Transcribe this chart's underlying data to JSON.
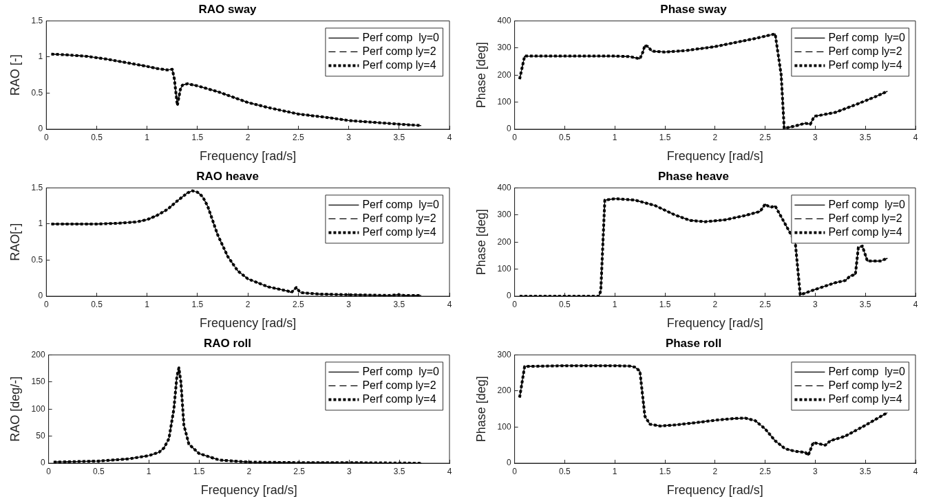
{
  "chart_data": [
    {
      "type": "line",
      "title": "RAO sway",
      "xlabel": "Frequency [rad/s]",
      "ylabel": "RAO [-]",
      "xlim": [
        0,
        4
      ],
      "xticks": [
        0,
        0.5,
        1,
        1.5,
        2,
        2.5,
        3,
        3.5,
        4
      ],
      "ylim": [
        0,
        1.5
      ],
      "yticks": [
        0,
        0.5,
        1,
        1.5
      ],
      "legend": "top right",
      "grid": false,
      "marker": "none",
      "x": [
        0.05,
        0.2,
        0.4,
        0.6,
        0.8,
        1.0,
        1.1,
        1.2,
        1.25,
        1.27,
        1.3,
        1.33,
        1.35,
        1.4,
        1.5,
        1.7,
        1.9,
        2.0,
        2.2,
        2.5,
        2.8,
        3.0,
        3.3,
        3.5,
        3.72
      ],
      "series": [
        {
          "name": "Perf comp  ly=0",
          "color": "#000000",
          "line_style": "solid",
          "values": [
            1.04,
            1.03,
            1.01,
            0.97,
            0.92,
            0.87,
            0.84,
            0.82,
            0.83,
            0.7,
            0.33,
            0.55,
            0.61,
            0.63,
            0.6,
            0.52,
            0.42,
            0.37,
            0.3,
            0.21,
            0.16,
            0.12,
            0.09,
            0.07,
            0.05
          ]
        },
        {
          "name": "Perf comp ly=2",
          "color": "#000000",
          "line_style": "dashed",
          "values": [
            1.04,
            1.03,
            1.01,
            0.97,
            0.92,
            0.87,
            0.84,
            0.82,
            0.83,
            0.7,
            0.33,
            0.55,
            0.61,
            0.63,
            0.6,
            0.52,
            0.42,
            0.37,
            0.3,
            0.21,
            0.16,
            0.12,
            0.09,
            0.07,
            0.05
          ]
        },
        {
          "name": "Perf comp ly=4",
          "color": "#000000",
          "line_style": "dotted",
          "values": [
            1.04,
            1.03,
            1.01,
            0.97,
            0.92,
            0.87,
            0.84,
            0.82,
            0.83,
            0.7,
            0.33,
            0.55,
            0.61,
            0.63,
            0.6,
            0.52,
            0.42,
            0.37,
            0.3,
            0.21,
            0.16,
            0.12,
            0.09,
            0.07,
            0.05
          ]
        }
      ]
    },
    {
      "type": "line",
      "title": "Phase sway",
      "xlabel": "Frequency [rad/s]",
      "ylabel": "Phase [deg]",
      "xlim": [
        0,
        4
      ],
      "xticks": [
        0,
        0.5,
        1,
        1.5,
        2,
        2.5,
        3,
        3.5,
        4
      ],
      "ylim": [
        0,
        400
      ],
      "yticks": [
        0,
        100,
        200,
        300,
        400
      ],
      "legend": "top right",
      "grid": false,
      "marker": "none",
      "x": [
        0.05,
        0.1,
        0.5,
        1.0,
        1.15,
        1.25,
        1.28,
        1.3,
        1.33,
        1.37,
        1.5,
        1.7,
        2.0,
        2.2,
        2.4,
        2.6,
        2.66,
        2.69,
        2.8,
        2.9,
        2.95,
        2.98,
        3.0,
        3.2,
        3.4,
        3.6,
        3.72
      ],
      "series": [
        {
          "name": "Perf comp  ly=0",
          "color": "#000000",
          "line_style": "solid",
          "values": [
            185,
            270,
            270,
            270,
            268,
            260,
            285,
            310,
            305,
            288,
            285,
            290,
            305,
            320,
            335,
            352,
            200,
            3,
            12,
            22,
            18,
            40,
            48,
            62,
            90,
            120,
            140
          ]
        },
        {
          "name": "Perf comp ly=2",
          "color": "#000000",
          "line_style": "dashed",
          "values": [
            185,
            270,
            270,
            270,
            268,
            260,
            285,
            310,
            305,
            288,
            285,
            290,
            305,
            320,
            335,
            352,
            200,
            3,
            12,
            22,
            18,
            40,
            48,
            62,
            90,
            120,
            140
          ]
        },
        {
          "name": "Perf comp ly=4",
          "color": "#000000",
          "line_style": "dotted",
          "values": [
            185,
            270,
            270,
            270,
            268,
            260,
            285,
            310,
            305,
            288,
            285,
            290,
            305,
            320,
            335,
            352,
            200,
            3,
            12,
            22,
            18,
            40,
            48,
            62,
            90,
            120,
            140
          ]
        }
      ]
    },
    {
      "type": "line",
      "title": "RAO heave",
      "xlabel": "Frequency [rad/s]",
      "ylabel": "RAO[-]",
      "xlim": [
        0,
        4
      ],
      "xticks": [
        0,
        0.5,
        1,
        1.5,
        2,
        2.5,
        3,
        3.5,
        4
      ],
      "ylim": [
        0,
        1.5
      ],
      "yticks": [
        0,
        0.5,
        1,
        1.5
      ],
      "legend": "top right",
      "grid": false,
      "marker": "none",
      "x": [
        0.05,
        0.5,
        0.7,
        0.9,
        1.0,
        1.1,
        1.2,
        1.3,
        1.4,
        1.45,
        1.5,
        1.55,
        1.6,
        1.65,
        1.7,
        1.8,
        1.9,
        2.0,
        2.2,
        2.4,
        2.43,
        2.48,
        2.52,
        2.7,
        3.0,
        3.4,
        3.5,
        3.55,
        3.72
      ],
      "series": [
        {
          "name": "Perf comp  ly=0",
          "color": "#000000",
          "line_style": "solid",
          "values": [
            1,
            1,
            1.01,
            1.03,
            1.06,
            1.12,
            1.2,
            1.32,
            1.43,
            1.46,
            1.44,
            1.38,
            1.25,
            1.05,
            0.85,
            0.55,
            0.35,
            0.24,
            0.13,
            0.07,
            0.05,
            0.12,
            0.05,
            0.03,
            0.02,
            0.01,
            0.02,
            0.01,
            0.01
          ]
        },
        {
          "name": "Perf comp ly=2",
          "color": "#000000",
          "line_style": "dashed",
          "values": [
            1,
            1,
            1.01,
            1.03,
            1.06,
            1.12,
            1.2,
            1.32,
            1.43,
            1.46,
            1.44,
            1.38,
            1.25,
            1.05,
            0.85,
            0.55,
            0.35,
            0.24,
            0.13,
            0.07,
            0.05,
            0.12,
            0.05,
            0.03,
            0.02,
            0.01,
            0.02,
            0.01,
            0.01
          ]
        },
        {
          "name": "Perf comp ly=4",
          "color": "#000000",
          "line_style": "dotted",
          "values": [
            1,
            1,
            1.01,
            1.03,
            1.06,
            1.12,
            1.2,
            1.32,
            1.43,
            1.46,
            1.44,
            1.38,
            1.25,
            1.05,
            0.85,
            0.55,
            0.35,
            0.24,
            0.13,
            0.07,
            0.05,
            0.12,
            0.05,
            0.03,
            0.02,
            0.01,
            0.02,
            0.01,
            0.01
          ]
        }
      ]
    },
    {
      "type": "line",
      "title": "Phase heave",
      "xlabel": "Frequency [rad/s]",
      "ylabel": "Phase [deg]",
      "xlim": [
        0,
        4
      ],
      "xticks": [
        0,
        0.5,
        1,
        1.5,
        2,
        2.5,
        3,
        3.5,
        4
      ],
      "ylim": [
        0,
        400
      ],
      "yticks": [
        0,
        100,
        200,
        300,
        400
      ],
      "legend": "top right",
      "grid": false,
      "marker": "none",
      "x": [
        0.05,
        0.5,
        0.84,
        0.86,
        0.9,
        1.0,
        1.2,
        1.4,
        1.6,
        1.75,
        1.9,
        2.1,
        2.3,
        2.45,
        2.5,
        2.55,
        2.6,
        2.8,
        2.85,
        3.0,
        3.2,
        3.3,
        3.35,
        3.4,
        3.43,
        3.47,
        3.52,
        3.65,
        3.72
      ],
      "series": [
        {
          "name": "Perf comp  ly=0",
          "color": "#000000",
          "line_style": "solid",
          "values": [
            0,
            0,
            0,
            20,
            355,
            360,
            355,
            335,
            300,
            280,
            275,
            282,
            298,
            313,
            340,
            328,
            333,
            200,
            5,
            25,
            50,
            58,
            75,
            80,
            180,
            185,
            130,
            130,
            140
          ]
        },
        {
          "name": "Perf comp ly=2",
          "color": "#000000",
          "line_style": "dashed",
          "values": [
            0,
            0,
            0,
            20,
            355,
            360,
            355,
            335,
            300,
            280,
            275,
            282,
            298,
            313,
            340,
            328,
            333,
            200,
            5,
            25,
            50,
            58,
            75,
            80,
            180,
            185,
            130,
            130,
            140
          ]
        },
        {
          "name": "Perf comp ly=4",
          "color": "#000000",
          "line_style": "dotted",
          "values": [
            0,
            0,
            0,
            20,
            355,
            360,
            355,
            335,
            300,
            280,
            275,
            282,
            298,
            313,
            340,
            328,
            333,
            200,
            5,
            25,
            50,
            58,
            75,
            80,
            180,
            185,
            130,
            130,
            140
          ]
        }
      ]
    },
    {
      "type": "line",
      "title": "RAO roll",
      "xlabel": "Frequency [rad/s]",
      "ylabel": "RAO [deg/-]",
      "xlim": [
        0,
        4
      ],
      "xticks": [
        0,
        0.5,
        1,
        1.5,
        2,
        2.5,
        3,
        3.5,
        4
      ],
      "ylim": [
        0,
        200
      ],
      "yticks": [
        0,
        50,
        100,
        150,
        200
      ],
      "legend": "top right",
      "grid": false,
      "marker": "none",
      "x": [
        0.05,
        0.5,
        0.8,
        1.0,
        1.1,
        1.15,
        1.2,
        1.25,
        1.28,
        1.3,
        1.32,
        1.35,
        1.4,
        1.5,
        1.7,
        2.0,
        2.5,
        3.0,
        3.72
      ],
      "series": [
        {
          "name": "Perf comp  ly=0",
          "color": "#000000",
          "line_style": "solid",
          "values": [
            2,
            4,
            8,
            14,
            20,
            28,
            45,
            100,
            160,
            176,
            150,
            70,
            35,
            18,
            6,
            2,
            1,
            1,
            0
          ]
        },
        {
          "name": "Perf comp ly=2",
          "color": "#000000",
          "line_style": "dashed",
          "values": [
            2,
            4,
            8,
            14,
            20,
            28,
            45,
            100,
            160,
            176,
            150,
            70,
            35,
            18,
            6,
            2,
            1,
            1,
            0
          ]
        },
        {
          "name": "Perf comp ly=4",
          "color": "#000000",
          "line_style": "dotted",
          "values": [
            2,
            4,
            8,
            14,
            20,
            28,
            45,
            100,
            160,
            176,
            150,
            70,
            35,
            18,
            6,
            2,
            1,
            1,
            0
          ]
        }
      ]
    },
    {
      "type": "line",
      "title": "Phase roll",
      "xlabel": "Frequency [rad/s]",
      "ylabel": "Phase [deg]",
      "xlim": [
        0,
        4
      ],
      "xticks": [
        0,
        0.5,
        1,
        1.5,
        2,
        2.5,
        3,
        3.5,
        4
      ],
      "ylim": [
        0,
        300
      ],
      "yticks": [
        0,
        100,
        200,
        300
      ],
      "legend": "top right",
      "grid": false,
      "marker": "none",
      "x": [
        0.05,
        0.1,
        0.5,
        1.0,
        1.15,
        1.2,
        1.25,
        1.28,
        1.3,
        1.35,
        1.45,
        1.6,
        1.8,
        2.0,
        2.2,
        2.3,
        2.4,
        2.5,
        2.6,
        2.7,
        2.8,
        2.9,
        2.93,
        2.98,
        3.05,
        3.1,
        3.15,
        3.3,
        3.5,
        3.72
      ],
      "series": [
        {
          "name": "Perf comp  ly=0",
          "color": "#000000",
          "line_style": "solid",
          "values": [
            182,
            268,
            270,
            270,
            269,
            266,
            255,
            180,
            130,
            108,
            103,
            106,
            112,
            119,
            124,
            125,
            118,
            95,
            62,
            40,
            33,
            30,
            22,
            57,
            53,
            50,
            62,
            75,
            105,
            140
          ]
        },
        {
          "name": "Perf comp ly=2",
          "color": "#000000",
          "line_style": "dashed",
          "values": [
            182,
            268,
            270,
            270,
            269,
            266,
            255,
            180,
            130,
            108,
            103,
            106,
            112,
            119,
            124,
            125,
            118,
            95,
            62,
            40,
            33,
            30,
            22,
            57,
            53,
            50,
            62,
            75,
            105,
            140
          ]
        },
        {
          "name": "Perf comp ly=4",
          "color": "#000000",
          "line_style": "dotted",
          "values": [
            182,
            268,
            270,
            270,
            269,
            266,
            255,
            180,
            130,
            108,
            103,
            106,
            112,
            119,
            124,
            125,
            118,
            95,
            62,
            40,
            33,
            30,
            22,
            57,
            53,
            50,
            62,
            75,
            105,
            140
          ]
        }
      ]
    }
  ]
}
